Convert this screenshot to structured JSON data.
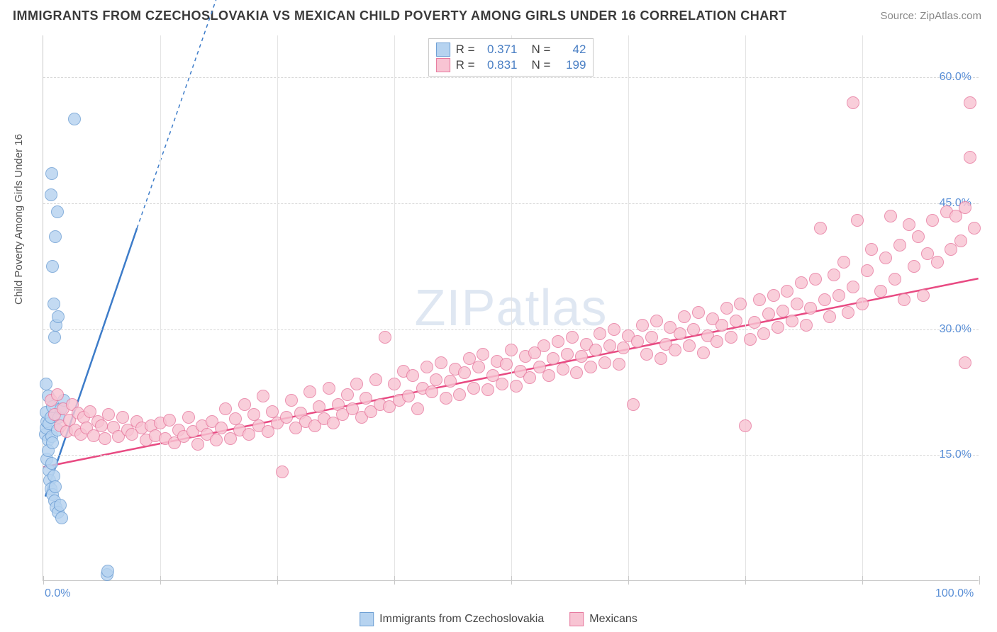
{
  "title": "IMMIGRANTS FROM CZECHOSLOVAKIA VS MEXICAN CHILD POVERTY AMONG GIRLS UNDER 16 CORRELATION CHART",
  "source_label": "Source: ZipAtlas.com",
  "y_axis_label": "Child Poverty Among Girls Under 16",
  "watermark_text": "ZIPatlas",
  "chart": {
    "type": "scatter",
    "x_range": [
      0,
      100
    ],
    "y_range": [
      0,
      65
    ],
    "x_ticks": [
      0,
      12.5,
      25,
      37.5,
      50,
      62.5,
      75,
      87.5,
      100
    ],
    "x_tick_labels_shown": {
      "0": "0.0%",
      "100": "100.0%"
    },
    "y_ticks": [
      15,
      30,
      45,
      60
    ],
    "y_tick_labels": {
      "15": "15.0%",
      "30": "30.0%",
      "45": "45.0%",
      "60": "60.0%"
    },
    "grid_color": "#d8d8d8",
    "tick_label_color": "#5a8fd6",
    "background_color": "#ffffff",
    "point_radius": 9,
    "point_border_width": 1
  },
  "series": [
    {
      "name": "Immigrants from Czechoslovakia",
      "fill_color": "#b6d3f0",
      "border_color": "#6e9fd4",
      "line_color": "#3d7cc9",
      "R": "0.371",
      "N": "42",
      "trend": {
        "x1": 0.2,
        "y1": 10,
        "x2": 10,
        "y2": 42,
        "dash_x2": 19,
        "dash_y2": 71
      },
      "points": [
        [
          0.2,
          17.5
        ],
        [
          0.3,
          18.2
        ],
        [
          0.4,
          19.0
        ],
        [
          0.5,
          16.8
        ],
        [
          0.3,
          20.1
        ],
        [
          0.6,
          18.7
        ],
        [
          0.5,
          22.0
        ],
        [
          0.8,
          19.5
        ],
        [
          0.9,
          17.2
        ],
        [
          1.0,
          20.8
        ],
        [
          0.4,
          14.5
        ],
        [
          0.6,
          13.2
        ],
        [
          0.7,
          12.0
        ],
        [
          0.8,
          11.0
        ],
        [
          1.0,
          10.3
        ],
        [
          1.2,
          9.5
        ],
        [
          1.4,
          8.8
        ],
        [
          1.6,
          8.2
        ],
        [
          1.8,
          9.0
        ],
        [
          2.0,
          7.5
        ],
        [
          0.5,
          15.5
        ],
        [
          0.9,
          14.0
        ],
        [
          1.1,
          12.5
        ],
        [
          1.3,
          11.2
        ],
        [
          1.0,
          16.5
        ],
        [
          1.5,
          18.0
        ],
        [
          1.7,
          19.5
        ],
        [
          1.9,
          20.5
        ],
        [
          2.2,
          21.5
        ],
        [
          0.3,
          23.5
        ],
        [
          1.2,
          29.0
        ],
        [
          1.4,
          30.5
        ],
        [
          1.6,
          31.5
        ],
        [
          1.1,
          33.0
        ],
        [
          1.3,
          41.0
        ],
        [
          1.0,
          37.5
        ],
        [
          0.8,
          46.0
        ],
        [
          0.9,
          48.5
        ],
        [
          1.5,
          44.0
        ],
        [
          3.3,
          55.0
        ],
        [
          6.8,
          0.8
        ],
        [
          6.9,
          1.2
        ]
      ]
    },
    {
      "name": "Mexicans",
      "fill_color": "#f8c4d3",
      "border_color": "#e77a9f",
      "line_color": "#e84a82",
      "R": "0.831",
      "N": "199",
      "trend": {
        "x1": 0,
        "y1": 13.5,
        "x2": 100,
        "y2": 36
      },
      "points": [
        [
          0.8,
          21.5
        ],
        [
          1.2,
          19.8
        ],
        [
          1.5,
          22.2
        ],
        [
          1.8,
          18.5
        ],
        [
          2.1,
          20.5
        ],
        [
          2.5,
          17.8
        ],
        [
          2.8,
          19.2
        ],
        [
          3.1,
          21.0
        ],
        [
          3.4,
          18.0
        ],
        [
          3.7,
          20.0
        ],
        [
          4.0,
          17.5
        ],
        [
          4.3,
          19.5
        ],
        [
          4.6,
          18.2
        ],
        [
          5.0,
          20.2
        ],
        [
          5.4,
          17.3
        ],
        [
          5.8,
          19.0
        ],
        [
          6.2,
          18.5
        ],
        [
          6.6,
          17.0
        ],
        [
          7.0,
          19.8
        ],
        [
          7.5,
          18.3
        ],
        [
          8.0,
          17.2
        ],
        [
          8.5,
          19.5
        ],
        [
          9.0,
          18.0
        ],
        [
          9.5,
          17.5
        ],
        [
          10.0,
          19.0
        ],
        [
          10.5,
          18.2
        ],
        [
          11.0,
          16.8
        ],
        [
          11.5,
          18.5
        ],
        [
          12.0,
          17.3
        ],
        [
          12.5,
          18.8
        ],
        [
          13.0,
          17.0
        ],
        [
          13.5,
          19.2
        ],
        [
          14.0,
          16.5
        ],
        [
          14.5,
          18.0
        ],
        [
          15.0,
          17.2
        ],
        [
          15.5,
          19.5
        ],
        [
          16.0,
          17.8
        ],
        [
          16.5,
          16.3
        ],
        [
          17.0,
          18.5
        ],
        [
          17.5,
          17.5
        ],
        [
          18.0,
          19.0
        ],
        [
          18.5,
          16.8
        ],
        [
          19.0,
          18.2
        ],
        [
          19.5,
          20.5
        ],
        [
          20.0,
          17.0
        ],
        [
          20.5,
          19.3
        ],
        [
          21.0,
          18.0
        ],
        [
          21.5,
          21.0
        ],
        [
          22.0,
          17.5
        ],
        [
          22.5,
          19.8
        ],
        [
          23.0,
          18.5
        ],
        [
          23.5,
          22.0
        ],
        [
          24.0,
          17.8
        ],
        [
          24.5,
          20.2
        ],
        [
          25.0,
          18.8
        ],
        [
          25.5,
          13.0
        ],
        [
          26.0,
          19.5
        ],
        [
          26.5,
          21.5
        ],
        [
          27.0,
          18.2
        ],
        [
          27.5,
          20.0
        ],
        [
          28.0,
          19.0
        ],
        [
          28.5,
          22.5
        ],
        [
          29.0,
          18.5
        ],
        [
          29.5,
          20.8
        ],
        [
          30.0,
          19.3
        ],
        [
          30.5,
          23.0
        ],
        [
          31.0,
          18.8
        ],
        [
          31.5,
          21.0
        ],
        [
          32.0,
          19.8
        ],
        [
          32.5,
          22.2
        ],
        [
          33.0,
          20.5
        ],
        [
          33.5,
          23.5
        ],
        [
          34.0,
          19.5
        ],
        [
          34.5,
          21.8
        ],
        [
          35.0,
          20.2
        ],
        [
          35.5,
          24.0
        ],
        [
          36.0,
          21.0
        ],
        [
          36.5,
          29.0
        ],
        [
          37.0,
          20.8
        ],
        [
          37.5,
          23.5
        ],
        [
          38.0,
          21.5
        ],
        [
          38.5,
          25.0
        ],
        [
          39.0,
          22.0
        ],
        [
          39.5,
          24.5
        ],
        [
          40.0,
          20.5
        ],
        [
          40.5,
          23.0
        ],
        [
          41.0,
          25.5
        ],
        [
          41.5,
          22.5
        ],
        [
          42.0,
          24.0
        ],
        [
          42.5,
          26.0
        ],
        [
          43.0,
          21.8
        ],
        [
          43.5,
          23.8
        ],
        [
          44.0,
          25.2
        ],
        [
          44.5,
          22.2
        ],
        [
          45.0,
          24.8
        ],
        [
          45.5,
          26.5
        ],
        [
          46.0,
          23.0
        ],
        [
          46.5,
          25.5
        ],
        [
          47.0,
          27.0
        ],
        [
          47.5,
          22.8
        ],
        [
          48.0,
          24.5
        ],
        [
          48.5,
          26.2
        ],
        [
          49.0,
          23.5
        ],
        [
          49.5,
          25.8
        ],
        [
          50.0,
          27.5
        ],
        [
          50.5,
          23.2
        ],
        [
          51.0,
          25.0
        ],
        [
          51.5,
          26.8
        ],
        [
          52.0,
          24.2
        ],
        [
          52.5,
          27.2
        ],
        [
          53.0,
          25.5
        ],
        [
          53.5,
          28.0
        ],
        [
          54.0,
          24.5
        ],
        [
          54.5,
          26.5
        ],
        [
          55.0,
          28.5
        ],
        [
          55.5,
          25.2
        ],
        [
          56.0,
          27.0
        ],
        [
          56.5,
          29.0
        ],
        [
          57.0,
          24.8
        ],
        [
          57.5,
          26.8
        ],
        [
          58.0,
          28.2
        ],
        [
          58.5,
          25.5
        ],
        [
          59.0,
          27.5
        ],
        [
          59.5,
          29.5
        ],
        [
          60.0,
          26.0
        ],
        [
          60.5,
          28.0
        ],
        [
          61.0,
          30.0
        ],
        [
          61.5,
          25.8
        ],
        [
          62.0,
          27.8
        ],
        [
          62.5,
          29.2
        ],
        [
          63.0,
          21.0
        ],
        [
          63.5,
          28.5
        ],
        [
          64.0,
          30.5
        ],
        [
          64.5,
          27.0
        ],
        [
          65.0,
          29.0
        ],
        [
          65.5,
          31.0
        ],
        [
          66.0,
          26.5
        ],
        [
          66.5,
          28.2
        ],
        [
          67.0,
          30.2
        ],
        [
          67.5,
          27.5
        ],
        [
          68.0,
          29.5
        ],
        [
          68.5,
          31.5
        ],
        [
          69.0,
          28.0
        ],
        [
          69.5,
          30.0
        ],
        [
          70.0,
          32.0
        ],
        [
          70.5,
          27.2
        ],
        [
          71.0,
          29.2
        ],
        [
          71.5,
          31.2
        ],
        [
          72.0,
          28.5
        ],
        [
          72.5,
          30.5
        ],
        [
          73.0,
          32.5
        ],
        [
          73.5,
          29.0
        ],
        [
          74.0,
          31.0
        ],
        [
          74.5,
          33.0
        ],
        [
          75.0,
          18.5
        ],
        [
          75.5,
          28.8
        ],
        [
          76.0,
          30.8
        ],
        [
          76.5,
          33.5
        ],
        [
          77.0,
          29.5
        ],
        [
          77.5,
          31.8
        ],
        [
          78.0,
          34.0
        ],
        [
          78.5,
          30.2
        ],
        [
          79.0,
          32.2
        ],
        [
          79.5,
          34.5
        ],
        [
          80.0,
          31.0
        ],
        [
          80.5,
          33.0
        ],
        [
          81.0,
          35.5
        ],
        [
          81.5,
          30.5
        ],
        [
          82.0,
          32.5
        ],
        [
          82.5,
          36.0
        ],
        [
          83.0,
          42.0
        ],
        [
          83.5,
          33.5
        ],
        [
          84.0,
          31.5
        ],
        [
          84.5,
          36.5
        ],
        [
          85.0,
          34.0
        ],
        [
          85.5,
          38.0
        ],
        [
          86.0,
          32.0
        ],
        [
          86.5,
          35.0
        ],
        [
          87.0,
          43.0
        ],
        [
          87.5,
          33.0
        ],
        [
          88.0,
          37.0
        ],
        [
          88.5,
          39.5
        ],
        [
          86.5,
          57.0
        ],
        [
          89.5,
          34.5
        ],
        [
          90.0,
          38.5
        ],
        [
          90.5,
          43.5
        ],
        [
          91.0,
          36.0
        ],
        [
          91.5,
          40.0
        ],
        [
          92.0,
          33.5
        ],
        [
          92.5,
          42.5
        ],
        [
          93.0,
          37.5
        ],
        [
          93.5,
          41.0
        ],
        [
          94.0,
          34.0
        ],
        [
          94.5,
          39.0
        ],
        [
          95.0,
          43.0
        ],
        [
          95.5,
          38.0
        ],
        [
          98.5,
          26.0
        ],
        [
          96.5,
          44.0
        ],
        [
          97.0,
          39.5
        ],
        [
          97.5,
          43.5
        ],
        [
          98.0,
          40.5
        ],
        [
          98.5,
          44.5
        ],
        [
          99.0,
          50.5
        ],
        [
          99.0,
          57.0
        ],
        [
          99.5,
          42.0
        ]
      ]
    }
  ],
  "legend_top": {
    "R_label": "R =",
    "N_label": "N ="
  },
  "legend_bottom": [
    {
      "swatch_fill": "#b6d3f0",
      "swatch_border": "#6e9fd4",
      "label_key": "series.0.name"
    },
    {
      "swatch_fill": "#f8c4d3",
      "swatch_border": "#e77a9f",
      "label_key": "series.1.name"
    }
  ]
}
